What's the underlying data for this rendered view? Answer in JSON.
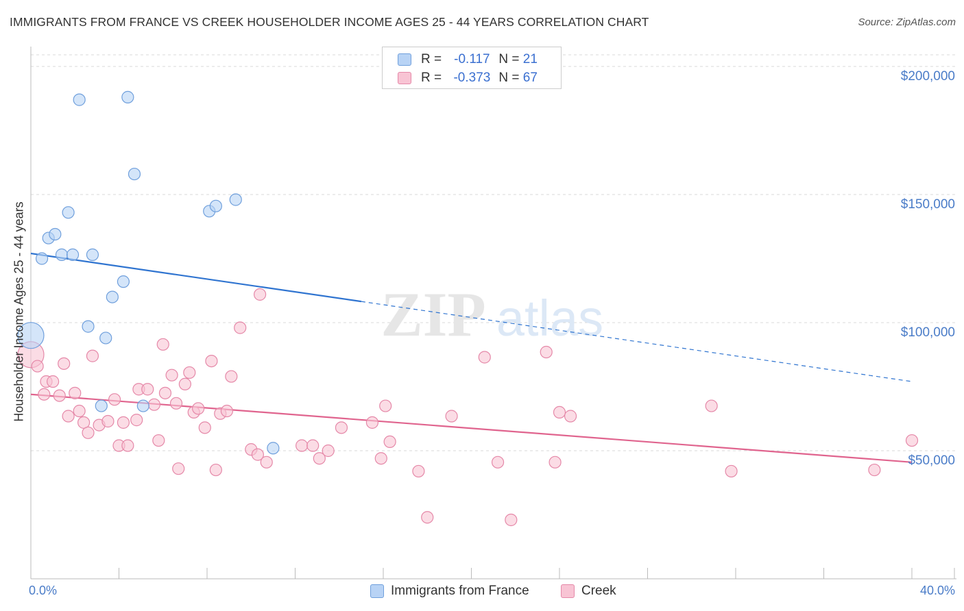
{
  "title": "IMMIGRANTS FROM FRANCE VS CREEK HOUSEHOLDER INCOME AGES 25 - 44 YEARS CORRELATION CHART",
  "source": "Source: ZipAtlas.com",
  "watermark": {
    "zip": "ZIP",
    "atlas": "atlas"
  },
  "legend_top": [
    {
      "r_label": "R =",
      "r_value": "-0.117",
      "n_label": "N =",
      "n_value": "21"
    },
    {
      "r_label": "R =",
      "r_value": "-0.373",
      "n_label": "N =",
      "n_value": "67"
    }
  ],
  "legend_bottom": [
    {
      "label": "Immigrants from France"
    },
    {
      "label": "Creek"
    }
  ],
  "colors": {
    "france_fill": "#b8d3f5",
    "france_stroke": "#6f9fdc",
    "france_line": "#2f74d0",
    "creek_fill": "#f8c4d4",
    "creek_stroke": "#e588a8",
    "creek_line": "#e0648e",
    "tick_text": "#4a7cc8",
    "grid": "#d8d8d8"
  },
  "chart_data": {
    "type": "scatter",
    "title": "IMMIGRANTS FROM FRANCE VS CREEK HOUSEHOLDER INCOME AGES 25 - 44 YEARS CORRELATION CHART",
    "xlabel": "",
    "ylabel": "Householder Income Ages 25 - 44 years",
    "xlim": [
      0,
      40
    ],
    "ylim": [
      0,
      200000
    ],
    "x_tick_labels": [
      "0.0%",
      "40.0%"
    ],
    "y_ticks": [
      {
        "value": 50000,
        "label": "$50,000"
      },
      {
        "value": 100000,
        "label": "$100,000"
      },
      {
        "value": 150000,
        "label": "$150,000"
      },
      {
        "value": 200000,
        "label": "$200,000"
      }
    ],
    "series": [
      {
        "name": "Immigrants from France",
        "r": -0.117,
        "n": 21,
        "trend": {
          "x0": 0,
          "y0": 127000,
          "x_solid_end": 15.0,
          "x1": 40,
          "y1": 77000
        },
        "points": [
          {
            "x": 0.0,
            "y": 95000,
            "big": true
          },
          {
            "x": 0.5,
            "y": 125000
          },
          {
            "x": 0.8,
            "y": 133000
          },
          {
            "x": 1.1,
            "y": 134500
          },
          {
            "x": 1.4,
            "y": 126500
          },
          {
            "x": 1.7,
            "y": 143000
          },
          {
            "x": 1.9,
            "y": 126500
          },
          {
            "x": 2.2,
            "y": 187000
          },
          {
            "x": 2.6,
            "y": 98500
          },
          {
            "x": 2.8,
            "y": 126500
          },
          {
            "x": 3.2,
            "y": 67500
          },
          {
            "x": 3.4,
            "y": 94000
          },
          {
            "x": 3.7,
            "y": 110000
          },
          {
            "x": 4.2,
            "y": 116000
          },
          {
            "x": 4.4,
            "y": 188000
          },
          {
            "x": 4.7,
            "y": 158000
          },
          {
            "x": 5.1,
            "y": 67500
          },
          {
            "x": 8.1,
            "y": 143500
          },
          {
            "x": 8.4,
            "y": 145500
          },
          {
            "x": 9.3,
            "y": 148000
          },
          {
            "x": 11.0,
            "y": 51000
          }
        ]
      },
      {
        "name": "Creek",
        "r": -0.373,
        "n": 67,
        "trend": {
          "x0": 0,
          "y0": 72000,
          "x1": 40,
          "y1": 45500
        },
        "points": [
          {
            "x": 0.0,
            "y": 87500,
            "big": true
          },
          {
            "x": 0.3,
            "y": 83000
          },
          {
            "x": 0.6,
            "y": 72000
          },
          {
            "x": 0.7,
            "y": 77000
          },
          {
            "x": 1.0,
            "y": 77000
          },
          {
            "x": 1.3,
            "y": 71500
          },
          {
            "x": 1.5,
            "y": 84000
          },
          {
            "x": 1.7,
            "y": 63500
          },
          {
            "x": 2.0,
            "y": 72500
          },
          {
            "x": 2.2,
            "y": 65500
          },
          {
            "x": 2.4,
            "y": 61000
          },
          {
            "x": 2.6,
            "y": 57000
          },
          {
            "x": 2.8,
            "y": 87000
          },
          {
            "x": 3.1,
            "y": 60000
          },
          {
            "x": 3.5,
            "y": 61500
          },
          {
            "x": 3.8,
            "y": 70000
          },
          {
            "x": 4.0,
            "y": 52000
          },
          {
            "x": 4.2,
            "y": 61000
          },
          {
            "x": 4.4,
            "y": 52000
          },
          {
            "x": 4.8,
            "y": 62000
          },
          {
            "x": 4.9,
            "y": 74000
          },
          {
            "x": 5.3,
            "y": 74000
          },
          {
            "x": 5.6,
            "y": 68000
          },
          {
            "x": 5.8,
            "y": 54000
          },
          {
            "x": 6.0,
            "y": 91500
          },
          {
            "x": 6.1,
            "y": 72500
          },
          {
            "x": 6.4,
            "y": 79500
          },
          {
            "x": 6.6,
            "y": 68500
          },
          {
            "x": 6.7,
            "y": 43000
          },
          {
            "x": 7.0,
            "y": 76000
          },
          {
            "x": 7.2,
            "y": 80500
          },
          {
            "x": 7.4,
            "y": 65000
          },
          {
            "x": 7.6,
            "y": 66500
          },
          {
            "x": 7.9,
            "y": 59000
          },
          {
            "x": 8.2,
            "y": 85000
          },
          {
            "x": 8.4,
            "y": 42500
          },
          {
            "x": 8.6,
            "y": 64500
          },
          {
            "x": 8.9,
            "y": 65500
          },
          {
            "x": 9.1,
            "y": 79000
          },
          {
            "x": 9.5,
            "y": 98000
          },
          {
            "x": 10.0,
            "y": 50500
          },
          {
            "x": 10.3,
            "y": 48500
          },
          {
            "x": 10.4,
            "y": 111000
          },
          {
            "x": 10.7,
            "y": 45500
          },
          {
            "x": 12.3,
            "y": 52000
          },
          {
            "x": 12.8,
            "y": 52000
          },
          {
            "x": 13.1,
            "y": 47000
          },
          {
            "x": 13.5,
            "y": 50000
          },
          {
            "x": 14.1,
            "y": 59000
          },
          {
            "x": 15.5,
            "y": 61000
          },
          {
            "x": 15.9,
            "y": 47000
          },
          {
            "x": 16.1,
            "y": 67500
          },
          {
            "x": 16.3,
            "y": 53500
          },
          {
            "x": 17.6,
            "y": 42000
          },
          {
            "x": 18.0,
            "y": 24000
          },
          {
            "x": 19.1,
            "y": 63500
          },
          {
            "x": 20.6,
            "y": 86500
          },
          {
            "x": 21.2,
            "y": 45500
          },
          {
            "x": 21.8,
            "y": 23000
          },
          {
            "x": 23.4,
            "y": 88500
          },
          {
            "x": 23.8,
            "y": 45500
          },
          {
            "x": 24.0,
            "y": 65000
          },
          {
            "x": 24.5,
            "y": 63500
          },
          {
            "x": 30.9,
            "y": 67500
          },
          {
            "x": 31.8,
            "y": 42000
          },
          {
            "x": 38.3,
            "y": 42500
          },
          {
            "x": 40.0,
            "y": 54000
          }
        ]
      }
    ]
  }
}
